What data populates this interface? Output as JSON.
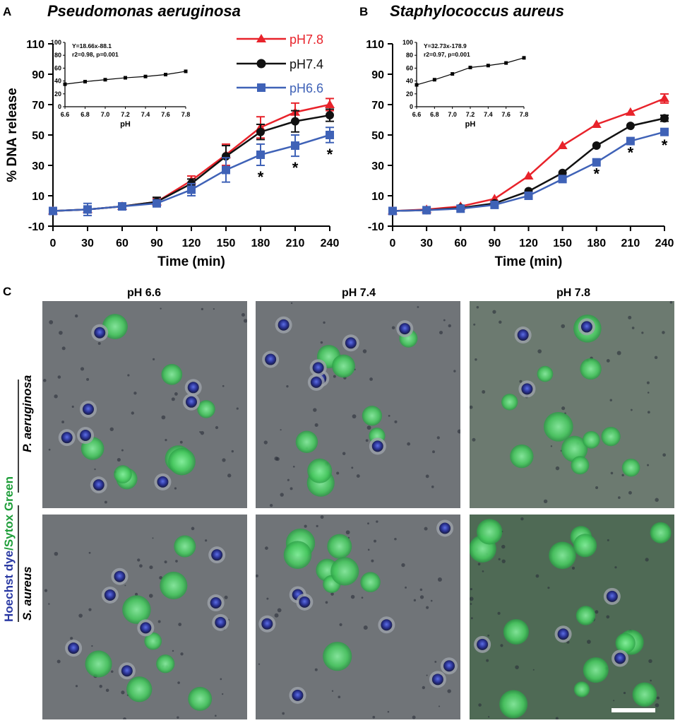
{
  "colors": {
    "ph78": "#e8232b",
    "ph74": "#111111",
    "ph66": "#3f62b7",
    "hoechst": "#2b3aa3",
    "sytox": "#1f9e3a"
  },
  "panel_labels": {
    "a": "A",
    "b": "B",
    "c": "C"
  },
  "scale_bar": "scale-bar",
  "chart_data": [
    {
      "type": "line",
      "panel": "A",
      "title": "Pseudomonas aeruginosa",
      "xlabel": "Time (min)",
      "ylabel": "% DNA release",
      "x": [
        0,
        30,
        60,
        90,
        120,
        150,
        180,
        210,
        240
      ],
      "x_ticks": [
        "0",
        "30",
        "60",
        "90",
        "120",
        "150",
        "180",
        "210",
        "240"
      ],
      "y_ticks": [
        "-10",
        "10",
        "30",
        "50",
        "70",
        "90",
        "110"
      ],
      "xlim": [
        0,
        240
      ],
      "ylim": [
        -10,
        110
      ],
      "series": [
        {
          "name": "pH7.8",
          "marker": "triangle",
          "values": [
            0,
            1,
            3,
            6,
            20,
            37,
            55,
            65,
            70
          ],
          "errors": [
            0,
            2,
            1,
            2,
            3,
            7,
            7,
            6,
            4
          ]
        },
        {
          "name": "pH7.4",
          "marker": "circle",
          "values": [
            0,
            1,
            3,
            6,
            18,
            36,
            52,
            59,
            63
          ],
          "errors": [
            0,
            2,
            1,
            3,
            3,
            7,
            5,
            7,
            4
          ]
        },
        {
          "name": "pH6.6",
          "marker": "square",
          "values": [
            0,
            1,
            3,
            5,
            14,
            27,
            37,
            43,
            50
          ],
          "errors": [
            0,
            4,
            1,
            2,
            4,
            8,
            7,
            7,
            5
          ]
        }
      ],
      "significance": [
        {
          "x": 180,
          "label": "*"
        },
        {
          "x": 210,
          "label": "*"
        },
        {
          "x": 240,
          "label": "*"
        }
      ],
      "inset": {
        "equation": "Y=18.66x-88.1",
        "stats": "r2=0.98, p=0.001",
        "xlabel": "pH",
        "x": [
          6.6,
          6.8,
          7.0,
          7.2,
          7.4,
          7.6,
          7.8
        ],
        "values": [
          35,
          39,
          42,
          45,
          47,
          50,
          55
        ],
        "x_ticks": [
          "6.6",
          "6.8",
          "7.0",
          "7.2",
          "7.4",
          "7.6",
          "7.8"
        ],
        "y_ticks": [
          "0",
          "20",
          "40",
          "60",
          "80",
          "100"
        ],
        "xlim": [
          6.6,
          7.8
        ],
        "ylim": [
          0,
          100
        ]
      }
    },
    {
      "type": "line",
      "panel": "B",
      "title": "Staphylococcus aureus",
      "xlabel": "Time (min)",
      "ylabel": "",
      "x": [
        0,
        30,
        60,
        90,
        120,
        150,
        180,
        210,
        240
      ],
      "x_ticks": [
        "0",
        "30",
        "60",
        "90",
        "120",
        "150",
        "180",
        "210",
        "240"
      ],
      "y_ticks": [
        "-10",
        "10",
        "30",
        "50",
        "70",
        "90",
        "110"
      ],
      "xlim": [
        0,
        240
      ],
      "ylim": [
        -10,
        110
      ],
      "series": [
        {
          "name": "pH7.8",
          "marker": "triangle",
          "values": [
            0,
            1,
            3,
            8,
            23,
            43,
            57,
            65,
            74
          ],
          "errors": [
            0,
            0,
            0,
            0,
            0,
            0,
            0,
            0,
            3
          ]
        },
        {
          "name": "pH7.4",
          "marker": "circle",
          "values": [
            0,
            0.5,
            2,
            5,
            13,
            25,
            43,
            56,
            61
          ],
          "errors": [
            0,
            0,
            0,
            0,
            0,
            0,
            0,
            0,
            2
          ]
        },
        {
          "name": "pH6.6",
          "marker": "square",
          "values": [
            0,
            0.5,
            1.5,
            4,
            10,
            21,
            32,
            46,
            52
          ],
          "errors": [
            0,
            0,
            0,
            0,
            0,
            0,
            0,
            0,
            1
          ]
        }
      ],
      "significance": [
        {
          "x": 180,
          "label": "*"
        },
        {
          "x": 210,
          "label": "*"
        },
        {
          "x": 240,
          "label": "*"
        }
      ],
      "inset": {
        "equation": "Y=32.73x-178.9",
        "stats": "r2=0.97, p=0.001",
        "xlabel": "pH",
        "x": [
          6.6,
          6.8,
          7.0,
          7.2,
          7.4,
          7.6,
          7.8
        ],
        "values": [
          34,
          42,
          51,
          61,
          64,
          68,
          76
        ],
        "x_ticks": [
          "6.6",
          "6.8",
          "7.0",
          "7.2",
          "7.4",
          "7.6",
          "7.8"
        ],
        "y_ticks": [
          "0",
          "20",
          "40",
          "60",
          "80",
          "100"
        ],
        "xlim": [
          6.6,
          7.8
        ],
        "ylim": [
          0,
          100
        ]
      }
    }
  ],
  "microscopy": {
    "columns": [
      "pH 6.6",
      "pH 7.4",
      "pH 7.8"
    ],
    "rows": [
      "P. aeruginosa",
      "S. aureus"
    ],
    "stain_label": {
      "part1": "Hoechst dye",
      "sep": "/",
      "part2": "Sytox Green"
    }
  }
}
